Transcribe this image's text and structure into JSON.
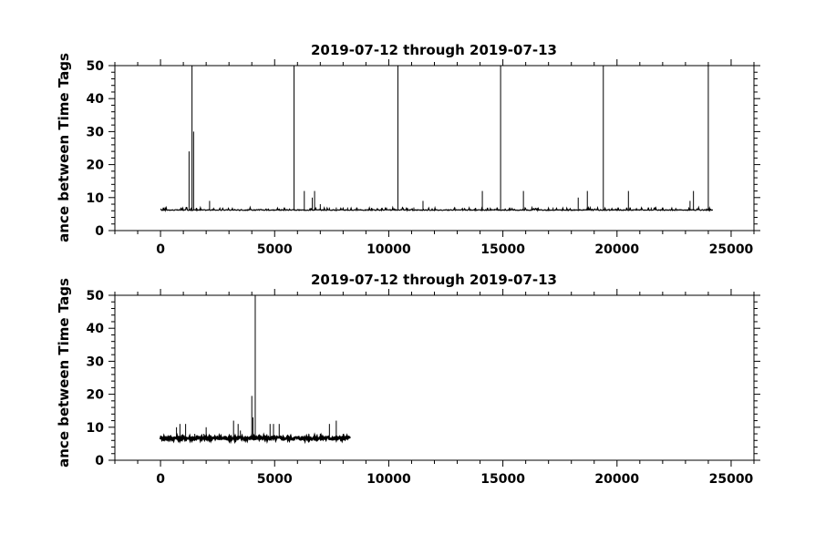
{
  "chart_data": [
    {
      "type": "line",
      "title": "2019-07-12 through 2019-07-13",
      "ylabel": "ance between Time Tags",
      "xlabel": "",
      "xlim": [
        -2000,
        26000
      ],
      "ylim": [
        0,
        50
      ],
      "xticks": [
        0,
        5000,
        10000,
        15000,
        20000,
        25000
      ],
      "yticks": [
        0,
        10,
        20,
        30,
        40,
        50
      ],
      "baseline": 6.1,
      "x_range": [
        0,
        24200
      ],
      "grid": false,
      "spikes": [
        {
          "x": 1250,
          "y": 24
        },
        {
          "x": 1380,
          "y": 50
        },
        {
          "x": 1450,
          "y": 30
        },
        {
          "x": 2150,
          "y": 9
        },
        {
          "x": 5850,
          "y": 50
        },
        {
          "x": 6300,
          "y": 12
        },
        {
          "x": 6650,
          "y": 10
        },
        {
          "x": 6750,
          "y": 12
        },
        {
          "x": 7000,
          "y": 8
        },
        {
          "x": 7400,
          "y": 7
        },
        {
          "x": 7700,
          "y": 7
        },
        {
          "x": 8200,
          "y": 7
        },
        {
          "x": 9900,
          "y": 7
        },
        {
          "x": 10400,
          "y": 50
        },
        {
          "x": 11100,
          "y": 7
        },
        {
          "x": 11500,
          "y": 9
        },
        {
          "x": 12900,
          "y": 7
        },
        {
          "x": 14100,
          "y": 12
        },
        {
          "x": 14900,
          "y": 50
        },
        {
          "x": 15900,
          "y": 12
        },
        {
          "x": 17200,
          "y": 7
        },
        {
          "x": 18300,
          "y": 10
        },
        {
          "x": 18700,
          "y": 12
        },
        {
          "x": 19400,
          "y": 50
        },
        {
          "x": 20500,
          "y": 12
        },
        {
          "x": 21500,
          "y": 7
        },
        {
          "x": 23200,
          "y": 9
        },
        {
          "x": 23350,
          "y": 12
        },
        {
          "x": 24000,
          "y": 50
        }
      ]
    },
    {
      "type": "line",
      "title": "2019-07-12 through 2019-07-13",
      "ylabel": "ance between Time Tags",
      "xlabel": "",
      "xlim": [
        -2000,
        26000
      ],
      "ylim": [
        0,
        50
      ],
      "xticks": [
        0,
        5000,
        10000,
        15000,
        20000,
        25000
      ],
      "yticks": [
        0,
        10,
        20,
        30,
        40,
        50
      ],
      "baseline": 6.7,
      "x_range": [
        0,
        8300
      ],
      "grid": false,
      "spikes": [
        {
          "x": 700,
          "y": 10
        },
        {
          "x": 850,
          "y": 11
        },
        {
          "x": 1100,
          "y": 11
        },
        {
          "x": 1500,
          "y": 8
        },
        {
          "x": 1900,
          "y": 8
        },
        {
          "x": 2000,
          "y": 10
        },
        {
          "x": 3200,
          "y": 12
        },
        {
          "x": 3400,
          "y": 11
        },
        {
          "x": 3500,
          "y": 9
        },
        {
          "x": 4000,
          "y": 19.5
        },
        {
          "x": 4050,
          "y": 13
        },
        {
          "x": 4150,
          "y": 50
        },
        {
          "x": 4800,
          "y": 11
        },
        {
          "x": 4950,
          "y": 11
        },
        {
          "x": 5200,
          "y": 11
        },
        {
          "x": 6500,
          "y": 8
        },
        {
          "x": 7000,
          "y": 8
        },
        {
          "x": 7400,
          "y": 11
        },
        {
          "x": 7700,
          "y": 12
        },
        {
          "x": 8000,
          "y": 8
        }
      ]
    }
  ]
}
